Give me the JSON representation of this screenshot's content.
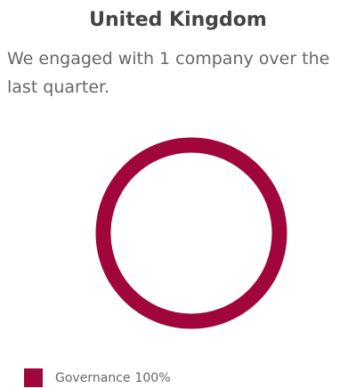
{
  "chart_data": {
    "type": "donut",
    "title": "United Kingdom",
    "subtitle": "We engaged with 1 company over the last quarter.",
    "categories": [
      "Governance"
    ],
    "values": [
      100
    ],
    "value_labels": [
      "100%"
    ],
    "colors": [
      "#a0063b"
    ]
  }
}
